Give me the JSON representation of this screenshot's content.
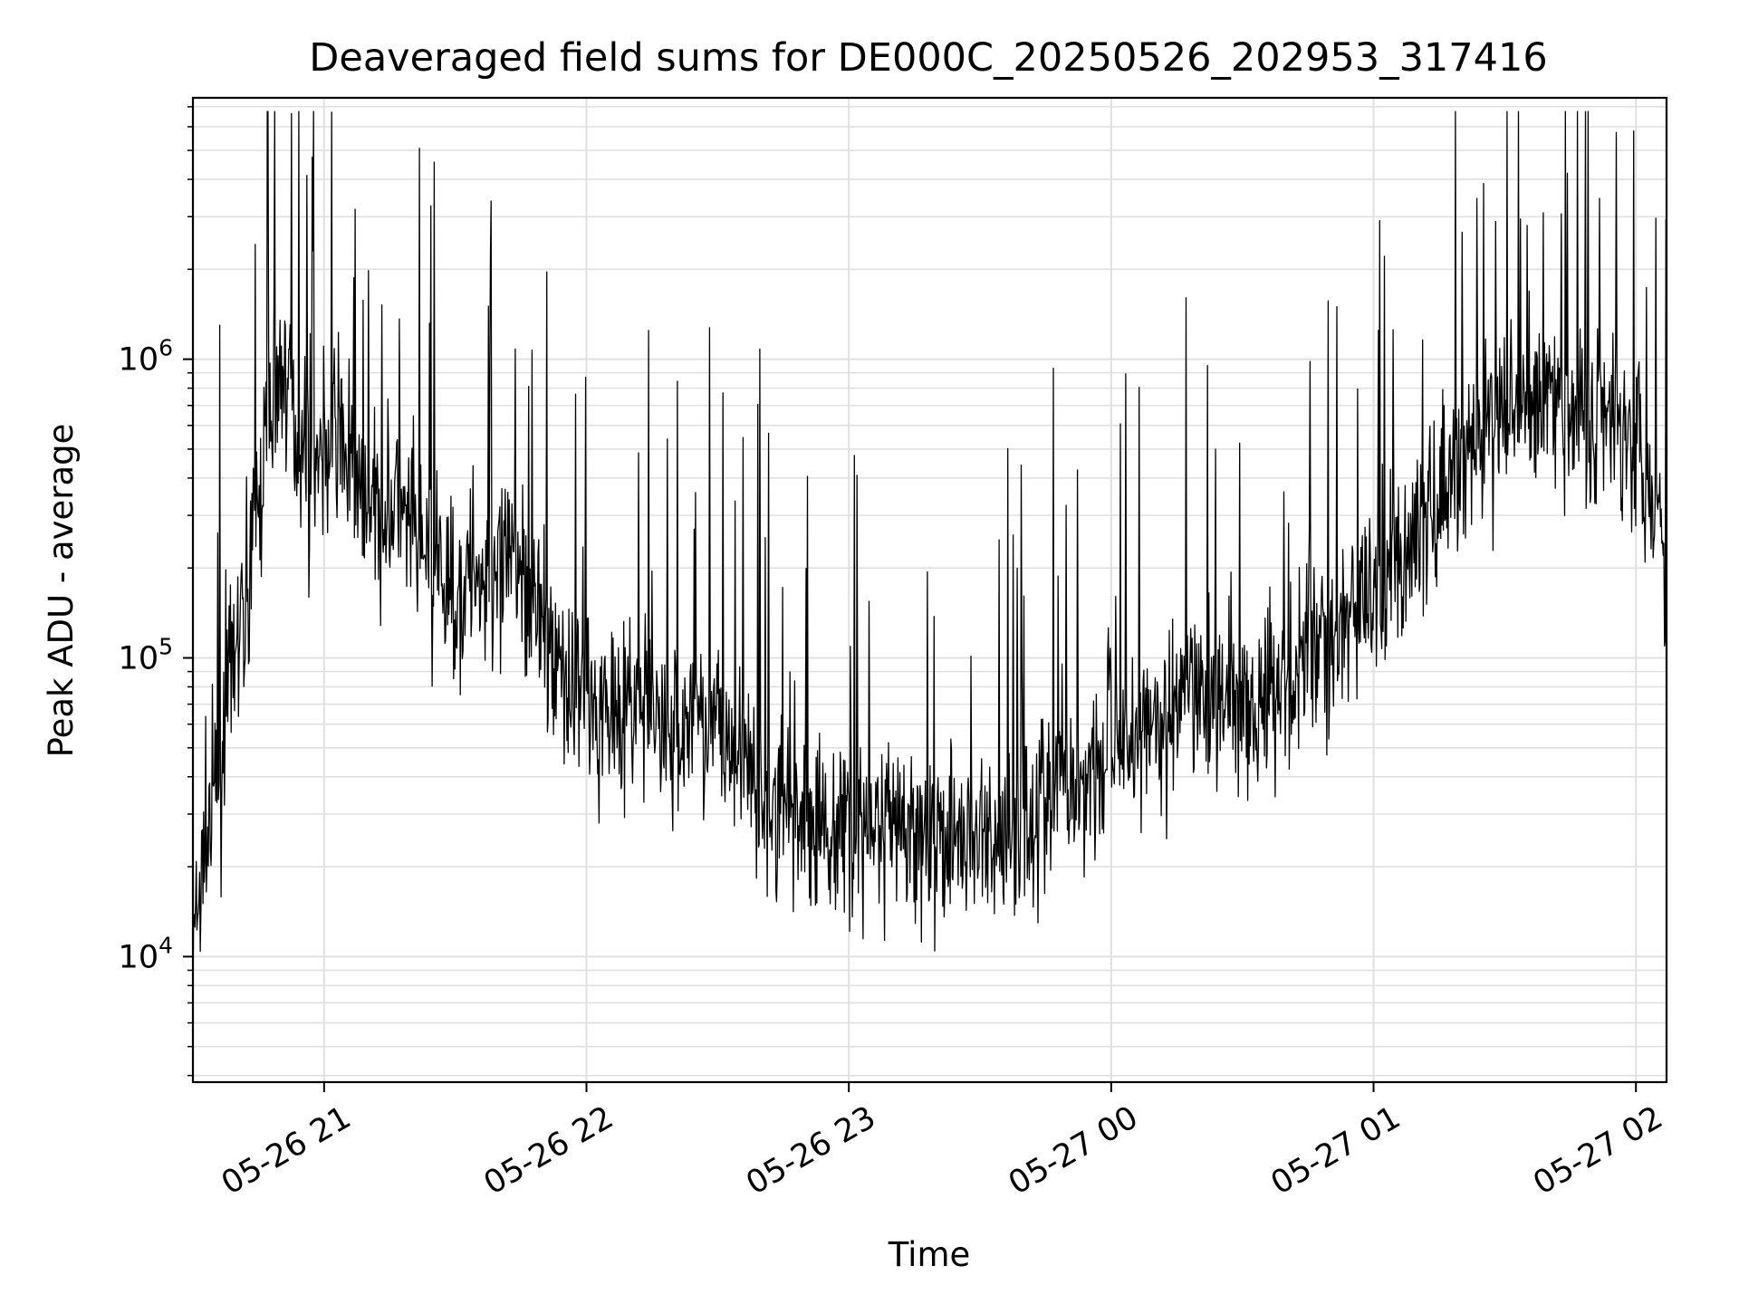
{
  "chart_data": {
    "type": "line",
    "title": "Deaveraged field sums for DE000C_20250526_202953_317416",
    "xlabel": "Time",
    "ylabel": "Peak ADU - average",
    "yscale": "log",
    "xlim": [
      "05-26 20:30",
      "05-27 02:07"
    ],
    "ylim": [
      3800,
      7500000
    ],
    "grid": true,
    "line_color": "#000000",
    "grid_color": "#e0e0e0",
    "x_ticks": [
      "05-26 21",
      "05-26 22",
      "05-26 23",
      "05-27 00",
      "05-27 01",
      "05-27 02"
    ],
    "y_ticks": [
      {
        "base": "10",
        "exp": "4"
      },
      {
        "base": "10",
        "exp": "5"
      },
      {
        "base": "10",
        "exp": "6"
      }
    ],
    "series": [
      {
        "x": [
          "20:30",
          "20:33",
          "20:36",
          "20:39",
          "20:42",
          "20:45",
          "20:48",
          "20:51",
          "20:54",
          "20:57",
          "21:00",
          "21:04",
          "21:08",
          "21:12",
          "21:16",
          "21:20",
          "21:25",
          "21:30",
          "21:35",
          "21:40",
          "21:45",
          "21:50",
          "21:55",
          "21:58",
          "22:00",
          "22:03",
          "22:05",
          "22:10",
          "22:15",
          "22:20",
          "22:25",
          "22:30",
          "22:35",
          "22:40",
          "22:45",
          "22:50",
          "22:55",
          "23:00",
          "23:05",
          "23:10",
          "23:15",
          "23:20",
          "23:25",
          "23:30",
          "23:35",
          "23:40",
          "23:45",
          "23:50",
          "23:55",
          "00:00",
          "00:05",
          "00:10",
          "00:15",
          "00:20",
          "00:25",
          "00:30",
          "00:35",
          "00:40",
          "00:45",
          "00:50",
          "00:55",
          "01:00",
          "01:05",
          "01:10",
          "01:15",
          "01:20",
          "01:25",
          "01:30",
          "01:35",
          "01:40",
          "01:45",
          "01:50",
          "01:55",
          "02:00",
          "02:03",
          "02:05",
          "02:07"
        ],
        "y": [
          10000,
          25000,
          40000,
          90000,
          160000,
          350000,
          700000,
          1000000,
          550000,
          450000,
          520000,
          600000,
          330000,
          280000,
          320000,
          260000,
          190000,
          170000,
          200000,
          180000,
          210000,
          120000,
          90000,
          70000,
          80000,
          65000,
          75000,
          70000,
          68000,
          55000,
          65000,
          60000,
          50000,
          32000,
          30000,
          28000,
          27000,
          28000,
          27000,
          26000,
          25000,
          26000,
          24000,
          25000,
          26000,
          28000,
          32000,
          38000,
          42000,
          48000,
          56000,
          62000,
          68000,
          70000,
          75000,
          72000,
          80000,
          85000,
          120000,
          110000,
          140000,
          160000,
          200000,
          260000,
          350000,
          450000,
          550000,
          680000,
          750000,
          700000,
          650000,
          650000,
          620000,
          600000,
          400000,
          300000,
          180000
        ]
      }
    ]
  }
}
